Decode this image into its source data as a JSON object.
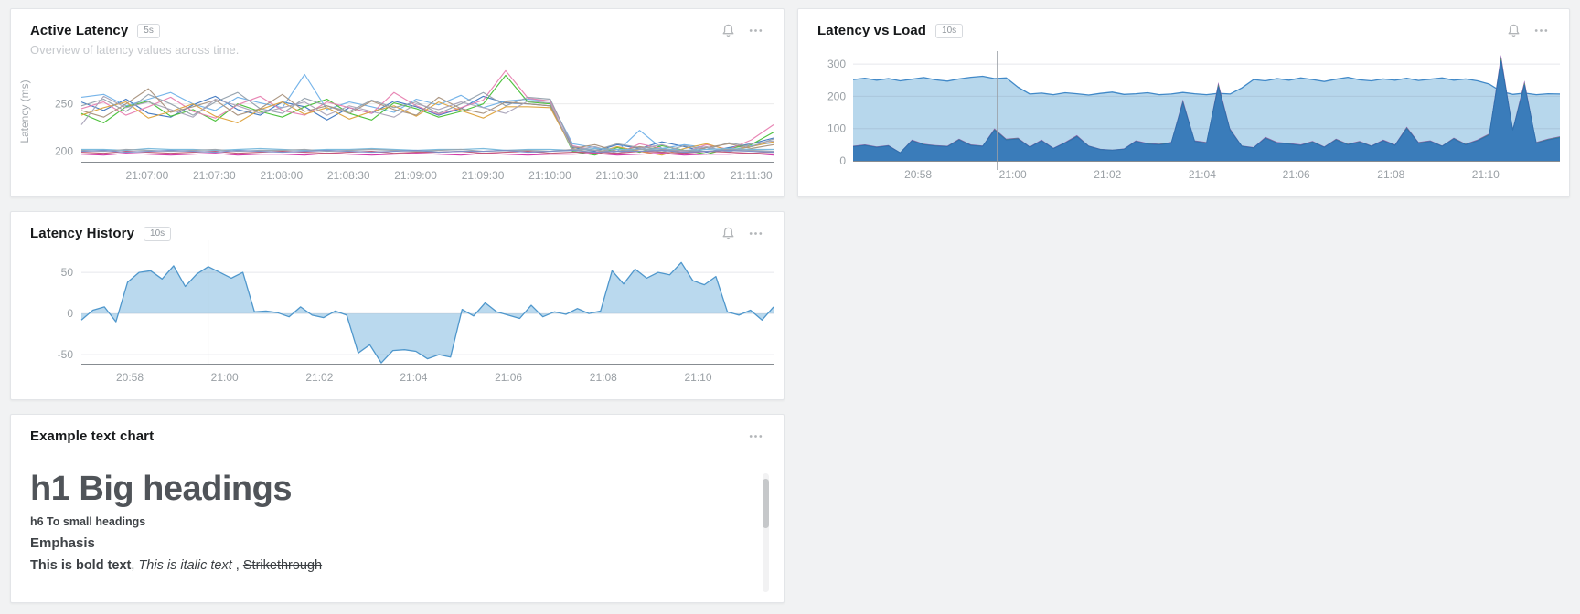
{
  "page": {
    "background": "#f1f2f3"
  },
  "panels": {
    "active_latency": {
      "title": "Active Latency",
      "badge": "5s",
      "subtitle": "Overview of latency values across time.",
      "icons": [
        "bell-icon",
        "ellipsis-icon"
      ],
      "chart": {
        "type": "line",
        "ylabel": "Latency (ms)",
        "ylim": [
          189,
          294
        ],
        "yticks": [
          {
            "v": 250,
            "label": "250"
          },
          {
            "v": 200,
            "label": "200"
          }
        ],
        "xticks": [
          {
            "f": 0.095,
            "label": "21:07:00"
          },
          {
            "f": 0.192,
            "label": "21:07:30"
          },
          {
            "f": 0.289,
            "label": "21:08:00"
          },
          {
            "f": 0.386,
            "label": "21:08:30"
          },
          {
            "f": 0.483,
            "label": "21:09:00"
          },
          {
            "f": 0.58,
            "label": "21:09:30"
          },
          {
            "f": 0.677,
            "label": "21:10:00"
          },
          {
            "f": 0.774,
            "label": "21:10:30"
          },
          {
            "f": 0.871,
            "label": "21:11:00"
          },
          {
            "f": 0.968,
            "label": "21:11:30"
          }
        ],
        "series": [
          {
            "color": "#3d76c0",
            "values": [
              252,
              243,
              255,
              240,
              236,
              249,
              258,
              244,
              238,
              252,
              247,
              233,
              246,
              240,
              253,
              247,
              238,
              245,
              258,
              251,
              250,
              248,
              204,
              200,
              207,
              203,
              210,
              205,
              199,
              204,
              208,
              214
            ]
          },
          {
            "color": "#6fb0e8",
            "values": [
              257,
              260,
              248,
              255,
              262,
              250,
              243,
              257,
              251,
              246,
              281,
              244,
              252,
              247,
              241,
              255,
              249,
              259,
              246,
              253,
              255,
              253,
              208,
              204,
              200,
              222,
              203,
              207,
              204,
              200,
              206,
              209
            ]
          },
          {
            "color": "#46bf35",
            "values": [
              240,
              230,
              247,
              253,
              237,
              244,
              232,
              250,
              242,
              236,
              247,
              255,
              240,
              233,
              251,
              245,
              236,
              242,
              250,
              280,
              252,
              250,
              200,
              196,
              204,
              199,
              206,
              201,
              197,
              203,
              207,
              220
            ]
          },
          {
            "color": "#e77fb0",
            "values": [
              245,
              252,
              238,
              247,
              257,
              242,
              235,
              249,
              258,
              243,
              238,
              252,
              246,
              240,
              262,
              248,
              239,
              246,
              254,
              285,
              256,
              253,
              206,
              201,
              197,
              208,
              203,
              199,
              207,
              202,
              212,
              228
            ]
          },
          {
            "color": "#dda23c",
            "values": [
              238,
              246,
              252,
              235,
              242,
              250,
              237,
              230,
              244,
              252,
              239,
              246,
              234,
              242,
              248,
              237,
              252,
              243,
              235,
              247,
              247,
              246,
              202,
              198,
              205,
              200,
              196,
              203,
              208,
              201,
              205,
              210
            ]
          },
          {
            "color": "#93a0ac",
            "values": [
              248,
              255,
              242,
              260,
              250,
              238,
              252,
              262,
              245,
              240,
              256,
              248,
              242,
              254,
              246,
              252,
              240,
              250,
              262,
              248,
              257,
              255,
              205,
              201,
              208,
              204,
              199,
              206,
              202,
              209,
              205,
              213
            ]
          },
          {
            "color": "#a8917c",
            "values": [
              243,
              236,
              250,
              266,
              241,
              247,
              254,
              238,
              245,
              260,
              242,
              248,
              240,
              253,
              244,
              238,
              257,
              245,
              240,
              252,
              250,
              248,
              203,
              207,
              200,
              205,
              202,
              198,
              204,
              208,
              203,
              207
            ]
          },
          {
            "color": "#a9a3b8",
            "values": [
              228,
              258,
              246,
              252,
              244,
              236,
              255,
              248,
              240,
              246,
              252,
              238,
              248,
              242,
              236,
              250,
              244,
              252,
              246,
              240,
              253,
              251,
              201,
              205,
              198,
              203,
              207,
              200,
              205,
              199,
              208,
              211
            ]
          },
          {
            "color": "#76b7db",
            "values": [
              202,
              202,
              201,
              203,
              202,
              202,
              201,
              202,
              203,
              202,
              201,
              202,
              202,
              203,
              202,
              201,
              202,
              202,
              203,
              201,
              202,
              202,
              201,
              203,
              202,
              202,
              203,
              201,
              202,
              203,
              202,
              202
            ]
          },
          {
            "color": "#9aa4ad",
            "values": [
              201,
              200,
              202,
              201,
              200,
              201,
              202,
              200,
              201,
              201,
              202,
              200,
              201,
              202,
              201,
              200,
              201,
              202,
              200,
              201,
              201,
              200,
              202,
              201,
              200,
              202,
              201,
              201,
              200,
              202,
              201,
              200
            ]
          },
          {
            "color": "#cf2fa4",
            "values": [
              197,
              196,
              198,
              197,
              196,
              197,
              198,
              196,
              197,
              197,
              196,
              198,
              197,
              196,
              197,
              198,
              197,
              196,
              198,
              197,
              196,
              197,
              197,
              198,
              196,
              197,
              198,
              196,
              197,
              197,
              198,
              196
            ]
          },
          {
            "color": "#c05574",
            "values": [
              199,
              198,
              200,
              199,
              198,
              199,
              200,
              198,
              199,
              200,
              199,
              198,
              199,
              200,
              198,
              199,
              199,
              200,
              198,
              199,
              200,
              198,
              199,
              199,
              198,
              200,
              199,
              198,
              200,
              199,
              198,
              199
            ]
          },
          {
            "color": "#7b8fca",
            "values": [
              200,
              201,
              199,
              200,
              201,
              200,
              199,
              201,
              200,
              199,
              200,
              201,
              200,
              199,
              200,
              201,
              199,
              200,
              200,
              201,
              199,
              200,
              201,
              199,
              200,
              200,
              201,
              199,
              200,
              201,
              200,
              199
            ]
          }
        ]
      }
    },
    "latency_vs_load": {
      "title": "Latency vs Load",
      "badge": "10s",
      "icons": [
        "bell-icon",
        "ellipsis-icon"
      ],
      "chart": {
        "type": "stacked-area",
        "ylim": [
          0,
          340
        ],
        "baseline": 0,
        "cursor": 0.204,
        "yticks": [
          {
            "v": 300,
            "label": "300"
          },
          {
            "v": 200,
            "label": "200"
          },
          {
            "v": 100,
            "label": "100"
          },
          {
            "v": 0,
            "label": "0"
          }
        ],
        "xticks": [
          {
            "f": 0.092,
            "label": "20:58"
          },
          {
            "f": 0.226,
            "label": "21:00"
          },
          {
            "f": 0.36,
            "label": "21:02"
          },
          {
            "f": 0.494,
            "label": "21:04"
          },
          {
            "f": 0.627,
            "label": "21:06"
          },
          {
            "f": 0.761,
            "label": "21:08"
          },
          {
            "f": 0.895,
            "label": "21:10"
          }
        ],
        "series": [
          {
            "fill": "#b7d7ec",
            "stroke": "#4189c8",
            "values": [
              252,
              256,
              250,
              255,
              248,
              253,
              258,
              251,
              247,
              254,
              259,
              262,
              255,
              257,
              228,
              207,
              210,
              205,
              211,
              208,
              204,
              209,
              213,
              206,
              208,
              211,
              205,
              207,
              212,
              208,
              205,
              209,
              207,
              226,
              252,
              248,
              255,
              250,
              257,
              252,
              246,
              253,
              259,
              251,
              248,
              254,
              250,
              256,
              249,
              253,
              257,
              250,
              254,
              248,
              238,
              215,
              206,
              210,
              205,
              208,
              207
            ]
          },
          {
            "fill": "#3a7cba",
            "stroke": "#2f6fae",
            "values": [
              44,
              48,
              42,
              46,
              25,
              62,
              50,
              46,
              44,
              65,
              48,
              45,
              95,
              65,
              68,
              42,
              62,
              38,
              55,
              75,
              45,
              35,
              33,
              36,
              60,
              52,
              50,
              55,
              180,
              60,
              55,
              230,
              95,
              45,
              40,
              70,
              55,
              52,
              48,
              58,
              42,
              65,
              50,
              58,
              45,
              62,
              48,
              100,
              55,
              60,
              45,
              68,
              50,
              62,
              80,
              310,
              95,
              235,
              55,
              65,
              72
            ]
          }
        ],
        "overlays": [
          {
            "color": "#8e5bb0",
            "factor": 1.06
          },
          {
            "color": "#3fae4a",
            "factor": 1.03
          }
        ]
      }
    },
    "latency_history": {
      "title": "Latency History",
      "badge": "10s",
      "icons": [
        "bell-icon",
        "ellipsis-icon"
      ],
      "chart": {
        "type": "area",
        "ylim": [
          -61,
          79
        ],
        "baseline": 0,
        "cursor": 0.183,
        "yticks": [
          {
            "v": 50,
            "label": "50"
          },
          {
            "v": 0,
            "label": "0"
          },
          {
            "v": -50,
            "label": "-50"
          }
        ],
        "xticks": [
          {
            "f": 0.07,
            "label": "20:58"
          },
          {
            "f": 0.207,
            "label": "21:00"
          },
          {
            "f": 0.344,
            "label": "21:02"
          },
          {
            "f": 0.48,
            "label": "21:04"
          },
          {
            "f": 0.617,
            "label": "21:06"
          },
          {
            "f": 0.754,
            "label": "21:08"
          },
          {
            "f": 0.891,
            "label": "21:10"
          }
        ],
        "series": [
          {
            "fill": "#bad9ee",
            "stroke": "#4f97cc",
            "values": [
              -8,
              4,
              8,
              -10,
              38,
              50,
              52,
              42,
              58,
              33,
              48,
              57,
              50,
              43,
              50,
              2,
              3,
              1,
              -4,
              8,
              -2,
              -5,
              3,
              -2,
              -48,
              -38,
              -60,
              -45,
              -44,
              -46,
              -55,
              -50,
              -53,
              5,
              -3,
              13,
              2,
              -2,
              -6,
              10,
              -4,
              2,
              -1,
              6,
              0,
              3,
              52,
              36,
              54,
              43,
              50,
              47,
              62,
              40,
              35,
              45,
              2,
              -2,
              4,
              -8,
              8
            ]
          }
        ]
      }
    },
    "text_chart": {
      "title": "Example text chart",
      "icons": [
        "ellipsis-icon"
      ],
      "content": {
        "h1": "h1 Big headings",
        "h6": "h6 To small headings",
        "emphasis": "Emphasis",
        "bold": "This is bold text",
        "sep1": ", ",
        "italic": "This is italic text",
        "sep2": " , ",
        "strike": "Strikethrough"
      }
    }
  }
}
